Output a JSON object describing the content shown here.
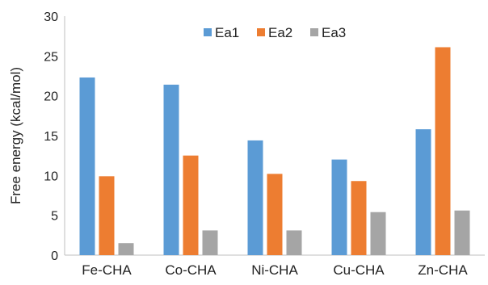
{
  "chart_data": {
    "type": "bar",
    "title": "",
    "xlabel": "",
    "ylabel": "Free energy  (kcal/mol)",
    "ylim": [
      0,
      30
    ],
    "yticks": [
      0,
      5,
      10,
      15,
      20,
      25,
      30
    ],
    "categories": [
      "Fe-CHA",
      "Co-CHA",
      "Ni-CHA",
      "Cu-CHA",
      "Zn-CHA"
    ],
    "series": [
      {
        "name": "Ea1",
        "color": "#5B9BD5",
        "values": [
          22.3,
          21.4,
          14.4,
          12.0,
          15.8
        ]
      },
      {
        "name": "Ea2",
        "color": "#ED7D31",
        "values": [
          9.9,
          12.5,
          10.2,
          9.3,
          26.1
        ]
      },
      {
        "name": "Ea3",
        "color": "#A5A5A5",
        "values": [
          1.5,
          3.1,
          3.1,
          5.4,
          5.6
        ]
      }
    ],
    "legend_position": "top",
    "grid": false
  }
}
